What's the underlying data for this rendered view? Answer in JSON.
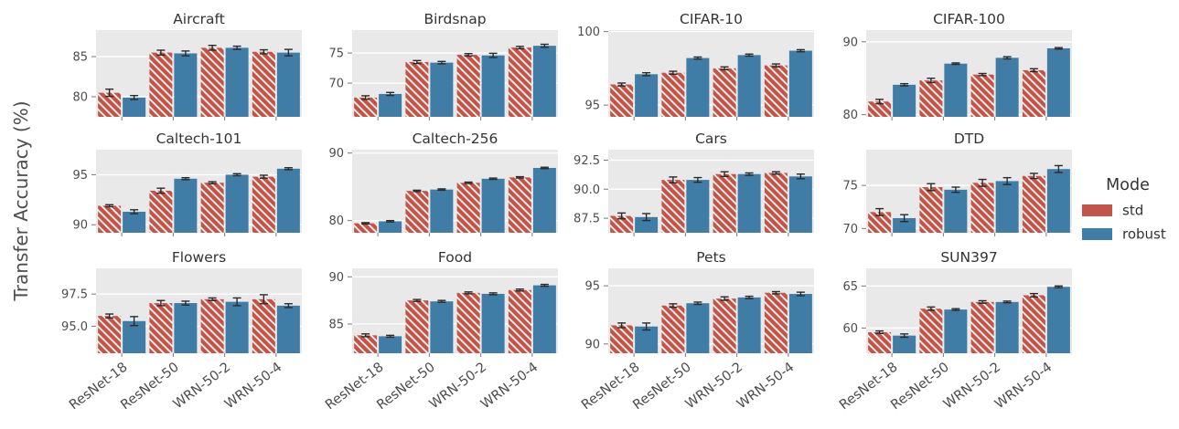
{
  "figure": {
    "ylabel": "Transfer Accuracy (%)",
    "background": "#ffffff",
    "panel_background": "#e9e9e9",
    "grid_color": "#ffffff",
    "tick_text_color": "#4d4d4d",
    "title_color": "#333333",
    "errorbar_color": "#2a2a2a"
  },
  "legend": {
    "title": "Mode",
    "entries": [
      {
        "label": "std",
        "color": "#c25548",
        "hatched": true
      },
      {
        "label": "robust",
        "color": "#3f7da6",
        "hatched": false
      }
    ]
  },
  "chart_data": {
    "type": "bar",
    "categories": [
      "ResNet-18",
      "ResNet-50",
      "WRN-50-2",
      "WRN-50-4"
    ],
    "modes": [
      "std",
      "robust"
    ],
    "ylabel": "Transfer Accuracy (%)",
    "grid": true,
    "legend_position": "right",
    "subplots": [
      {
        "title": "Aircraft",
        "ylim": [
          77.5,
          88.3
        ],
        "ticks": [
          {
            "label": "80",
            "value": 80
          },
          {
            "label": "85",
            "value": 85
          }
        ],
        "series": [
          {
            "name": "std",
            "values": [
              80.5,
              85.5,
              86.1,
              85.6
            ],
            "err": [
              0.45,
              0.3,
              0.3,
              0.25
            ]
          },
          {
            "name": "robust",
            "values": [
              79.9,
              85.4,
              86.1,
              85.5
            ],
            "err": [
              0.25,
              0.3,
              0.2,
              0.4
            ]
          }
        ]
      },
      {
        "title": "Birdsnap",
        "ylim": [
          64.4,
          78.8
        ],
        "ticks": [
          {
            "label": "70",
            "value": 70
          },
          {
            "label": "75",
            "value": 75
          }
        ],
        "series": [
          {
            "name": "std",
            "values": [
              67.6,
              73.5,
              74.7,
              75.9
            ],
            "err": [
              0.3,
              0.25,
              0.2,
              0.2
            ]
          },
          {
            "name": "robust",
            "values": [
              68.2,
              73.4,
              74.6,
              76.2
            ],
            "err": [
              0.25,
              0.2,
              0.35,
              0.25
            ]
          }
        ]
      },
      {
        "title": "CIFAR-10",
        "ylim": [
          94.2,
          100.1
        ],
        "ticks": [
          {
            "label": "95",
            "value": 95
          },
          {
            "label": "100",
            "value": 100
          }
        ],
        "series": [
          {
            "name": "std",
            "values": [
              96.4,
              97.2,
              97.5,
              97.7
            ],
            "err": [
              0.1,
              0.1,
              0.1,
              0.1
            ]
          },
          {
            "name": "robust",
            "values": [
              97.1,
              98.2,
              98.4,
              98.7
            ],
            "err": [
              0.1,
              0.07,
              0.07,
              0.07
            ]
          }
        ]
      },
      {
        "title": "CIFAR-100",
        "ylim": [
          79.7,
          91.6
        ],
        "ticks": [
          {
            "label": "80",
            "value": 80
          },
          {
            "label": "90",
            "value": 90
          }
        ],
        "series": [
          {
            "name": "std",
            "values": [
              81.8,
              84.7,
              85.5,
              86.1
            ],
            "err": [
              0.3,
              0.3,
              0.15,
              0.2
            ]
          },
          {
            "name": "robust",
            "values": [
              84.1,
              87.0,
              87.8,
              89.1
            ],
            "err": [
              0.15,
              0.1,
              0.15,
              0.1
            ]
          }
        ]
      },
      {
        "title": "Caltech-101",
        "ylim": [
          89.2,
          97.5
        ],
        "ticks": [
          {
            "label": "90",
            "value": 90
          },
          {
            "label": "95",
            "value": 95
          }
        ],
        "series": [
          {
            "name": "std",
            "values": [
              91.9,
              93.4,
              94.2,
              94.8
            ],
            "err": [
              0.1,
              0.25,
              0.1,
              0.15
            ]
          },
          {
            "name": "robust",
            "values": [
              91.3,
              94.6,
              95.0,
              95.6
            ],
            "err": [
              0.2,
              0.1,
              0.1,
              0.1
            ]
          }
        ]
      },
      {
        "title": "Caltech-256",
        "ylim": [
          78.2,
          90.5
        ],
        "ticks": [
          {
            "label": "80",
            "value": 80
          },
          {
            "label": "90",
            "value": 90
          }
        ],
        "series": [
          {
            "name": "std",
            "values": [
              79.6,
              84.4,
              85.6,
              86.4
            ],
            "err": [
              0.1,
              0.1,
              0.1,
              0.1
            ]
          },
          {
            "name": "robust",
            "values": [
              79.9,
              84.6,
              86.2,
              87.8
            ],
            "err": [
              0.1,
              0.1,
              0.1,
              0.1
            ]
          }
        ]
      },
      {
        "title": "Cars",
        "ylim": [
          86.25,
          93.4
        ],
        "ticks": [
          {
            "label": "87.5",
            "value": 87.5
          },
          {
            "label": "90.0",
            "value": 90.0
          },
          {
            "label": "92.5",
            "value": 92.5
          }
        ],
        "series": [
          {
            "name": "std",
            "values": [
              87.7,
              90.8,
              91.3,
              91.4
            ],
            "err": [
              0.25,
              0.25,
              0.2,
              0.1
            ]
          },
          {
            "name": "robust",
            "values": [
              87.6,
              90.8,
              91.3,
              91.1
            ],
            "err": [
              0.3,
              0.2,
              0.1,
              0.2
            ]
          }
        ]
      },
      {
        "title": "DTD",
        "ylim": [
          69.5,
          79.15
        ],
        "ticks": [
          {
            "label": "70",
            "value": 70
          },
          {
            "label": "75",
            "value": 75
          }
        ],
        "series": [
          {
            "name": "std",
            "values": [
              71.9,
              74.8,
              75.3,
              76.1
            ],
            "err": [
              0.4,
              0.4,
              0.4,
              0.3
            ]
          },
          {
            "name": "robust",
            "values": [
              71.2,
              74.5,
              75.5,
              76.9
            ],
            "err": [
              0.4,
              0.3,
              0.4,
              0.4
            ]
          }
        ]
      },
      {
        "title": "Flowers",
        "ylim": [
          92.9,
          99.5
        ],
        "ticks": [
          {
            "label": "95.0",
            "value": 95.0
          },
          {
            "label": "97.5",
            "value": 97.5
          }
        ],
        "series": [
          {
            "name": "std",
            "values": [
              95.8,
              96.8,
              97.1,
              97.1
            ],
            "err": [
              0.15,
              0.2,
              0.1,
              0.35
            ]
          },
          {
            "name": "robust",
            "values": [
              95.4,
              96.8,
              96.9,
              96.6
            ],
            "err": [
              0.35,
              0.15,
              0.3,
              0.15
            ]
          }
        ]
      },
      {
        "title": "Food",
        "ylim": [
          81.9,
          90.9
        ],
        "ticks": [
          {
            "label": "85",
            "value": 85
          },
          {
            "label": "90",
            "value": 90
          }
        ],
        "series": [
          {
            "name": "std",
            "values": [
              83.8,
              87.5,
              88.3,
              88.6
            ],
            "err": [
              0.15,
              0.1,
              0.1,
              0.1
            ]
          },
          {
            "name": "robust",
            "values": [
              83.7,
              87.4,
              88.2,
              89.1
            ],
            "err": [
              0.1,
              0.1,
              0.1,
              0.1
            ]
          }
        ]
      },
      {
        "title": "Pets",
        "ylim": [
          89.2,
          96.5
        ],
        "ticks": [
          {
            "label": "90",
            "value": 90
          },
          {
            "label": "95",
            "value": 95
          }
        ],
        "series": [
          {
            "name": "std",
            "values": [
              91.6,
              93.3,
              93.9,
              94.4
            ],
            "err": [
              0.2,
              0.15,
              0.15,
              0.1
            ]
          },
          {
            "name": "robust",
            "values": [
              91.5,
              93.5,
              94.0,
              94.3
            ],
            "err": [
              0.3,
              0.1,
              0.1,
              0.15
            ]
          }
        ]
      },
      {
        "title": "SUN397",
        "ylim": [
          57.0,
          67.1
        ],
        "ticks": [
          {
            "label": "60",
            "value": 60
          },
          {
            "label": "65",
            "value": 65
          }
        ],
        "series": [
          {
            "name": "std",
            "values": [
              59.5,
              62.3,
              63.1,
              63.9
            ],
            "err": [
              0.15,
              0.2,
              0.15,
              0.2
            ]
          },
          {
            "name": "robust",
            "values": [
              59.1,
              62.2,
              63.1,
              64.9
            ],
            "err": [
              0.2,
              0.1,
              0.1,
              0.1
            ]
          }
        ]
      }
    ]
  }
}
